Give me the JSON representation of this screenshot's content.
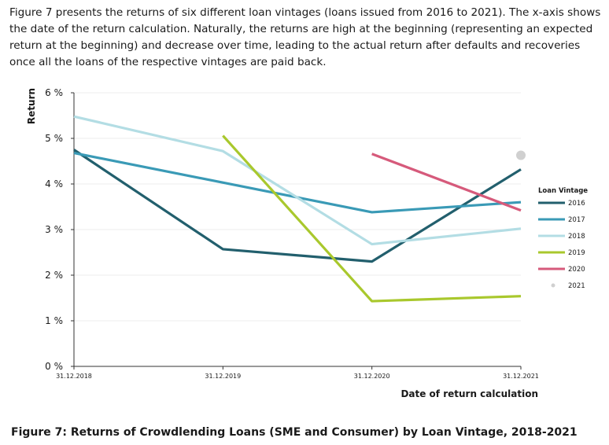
{
  "intro_text": "Figure 7 presents the returns of six different loan vintages (loans issued from 2016 to 2021). The x-axis shows the date of the return calculation. Naturally, the returns are high at the beginning (representing an expected return at the beginning) and decrease over time, leading to the actual return after defaults and recoveries once all the loans of the respective vintages are paid back.",
  "caption": "Figure 7: Returns of Crowdlending Loans (SME and Consumer) by Loan Vintage, 2018-2021",
  "chart_data": {
    "type": "line",
    "title": "",
    "xlabel": "Date of return calculation",
    "ylabel": "Return",
    "categories": [
      "31.12.2018",
      "31.12.2019",
      "31.12.2020",
      "31.12.2021"
    ],
    "ylim": [
      0,
      6
    ],
    "yticks": [
      0,
      1,
      2,
      3,
      4,
      5,
      6
    ],
    "ytick_labels": [
      "0 %",
      "1 %",
      "2 %",
      "3 %",
      "4 %",
      "5 %",
      "6 %"
    ],
    "grid": "horizontal",
    "legend_title": "Loan Vintage",
    "legend_position": "right",
    "series": [
      {
        "name": "2016",
        "color": "#225f6d",
        "marker": "line",
        "values": [
          4.75,
          2.57,
          2.3,
          4.32
        ]
      },
      {
        "name": "2017",
        "color": "#3a9ab6",
        "marker": "line",
        "values": [
          4.68,
          null,
          3.38,
          3.6
        ]
      },
      {
        "name": "2018",
        "color": "#b3dde4",
        "marker": "line",
        "values": [
          5.48,
          4.72,
          2.68,
          3.02
        ]
      },
      {
        "name": "2019",
        "color": "#a9c82d",
        "marker": "line",
        "values": [
          null,
          5.06,
          1.43,
          1.54
        ]
      },
      {
        "name": "2020",
        "color": "#d65a7b",
        "marker": "line",
        "values": [
          null,
          null,
          4.66,
          3.42
        ]
      },
      {
        "name": "2021",
        "color": "#d0d0d0",
        "marker": "dot",
        "values": [
          null,
          null,
          null,
          4.63
        ]
      }
    ]
  }
}
